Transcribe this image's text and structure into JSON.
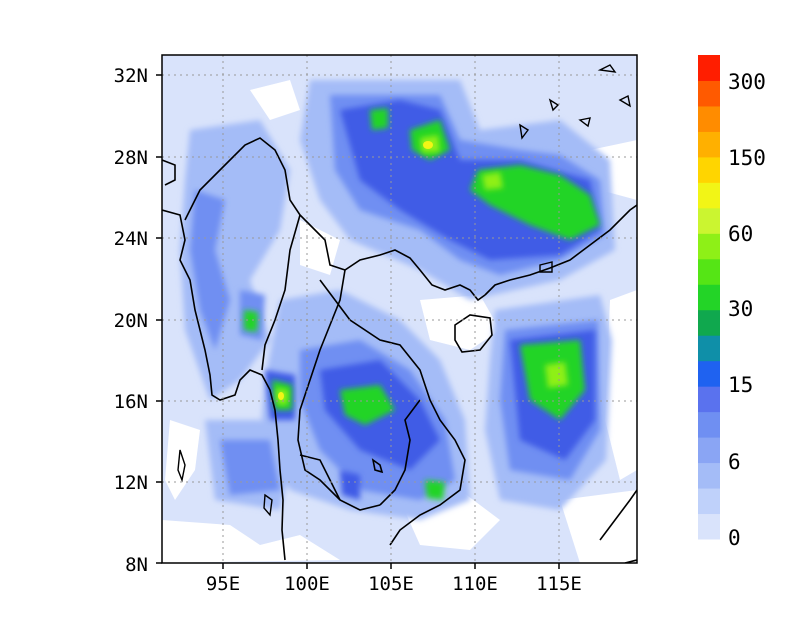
{
  "map": {
    "lat_labels": [
      "32N",
      "28N",
      "24N",
      "20N",
      "16N",
      "12N",
      "8N"
    ],
    "lon_labels": [
      "95E",
      "100E",
      "105E",
      "110E",
      "115E"
    ]
  },
  "colorbar": {
    "labels": [
      "300",
      "150",
      "60",
      "30",
      "15",
      "6",
      "0"
    ],
    "colors": [
      "#d9e3fb",
      "#bfd1fa",
      "#a4bcf7",
      "#8aa5f4",
      "#6f8ff2",
      "#5a72ee",
      "#1f62f0",
      "#0f8fa8",
      "#10a84e",
      "#23d427",
      "#55e515",
      "#8ef017",
      "#cbf530",
      "#f2f516",
      "#ffd500",
      "#ffb000",
      "#ff8c00",
      "#ff5a00",
      "#ff1e00"
    ]
  },
  "field_colors": {
    "background": "#d9e3fb",
    "white": "#ffffff",
    "light": "#a4bcf7",
    "mid": "#6f8ff2",
    "deep": "#3f5ce6",
    "green": "#23d427",
    "lime": "#8ef017",
    "yellow": "#f2f516"
  }
}
